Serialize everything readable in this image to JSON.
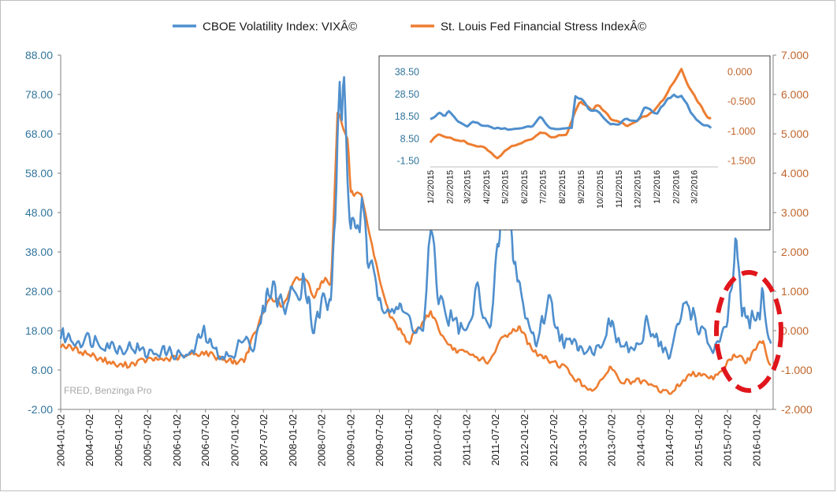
{
  "chart_data": [
    {
      "type": "line",
      "series": [
        {
          "name": "CBOE Volatility Index: VIXÂ©",
          "axis": "left",
          "color": "#4f8fcd",
          "anchors": [
            [
              "2004-01-02",
              17
            ],
            [
              "2004-04-01",
              15.5
            ],
            [
              "2004-07-01",
              16
            ],
            [
              "2004-10-01",
              15
            ],
            [
              "2005-01-03",
              13.5
            ],
            [
              "2005-04-01",
              14
            ],
            [
              "2005-07-01",
              12
            ],
            [
              "2005-10-03",
              13
            ],
            [
              "2006-01-03",
              12
            ],
            [
              "2006-04-03",
              11.5
            ],
            [
              "2006-06-15",
              18
            ],
            [
              "2006-09-01",
              12.5
            ],
            [
              "2007-01-02",
              11
            ],
            [
              "2007-02-27",
              18
            ],
            [
              "2007-05-01",
              13
            ],
            [
              "2007-08-16",
              30
            ],
            [
              "2007-11-01",
              24
            ],
            [
              "2008-01-22",
              28
            ],
            [
              "2008-03-17",
              32
            ],
            [
              "2008-05-15",
              18
            ],
            [
              "2008-07-15",
              26
            ],
            [
              "2008-09-01",
              24
            ],
            [
              "2008-10-24",
              79
            ],
            [
              "2008-11-20",
              75
            ],
            [
              "2009-01-02",
              44
            ],
            [
              "2009-03-09",
              48
            ],
            [
              "2009-05-01",
              33
            ],
            [
              "2009-07-01",
              27
            ],
            [
              "2009-09-01",
              25
            ],
            [
              "2010-01-04",
              21
            ],
            [
              "2010-04-01",
              17
            ],
            [
              "2010-05-20",
              43
            ],
            [
              "2010-07-01",
              28
            ],
            [
              "2010-09-01",
              22
            ],
            [
              "2011-01-03",
              17
            ],
            [
              "2011-03-16",
              29
            ],
            [
              "2011-06-01",
              17
            ],
            [
              "2011-08-08",
              48
            ],
            [
              "2011-10-03",
              43
            ],
            [
              "2012-01-03",
              22
            ],
            [
              "2012-03-15",
              15
            ],
            [
              "2012-06-01",
              26
            ],
            [
              "2012-09-01",
              15
            ],
            [
              "2013-01-02",
              14
            ],
            [
              "2013-04-01",
              13
            ],
            [
              "2013-06-20",
              20
            ],
            [
              "2013-09-01",
              14
            ],
            [
              "2014-01-02",
              13
            ],
            [
              "2014-02-03",
              21
            ],
            [
              "2014-07-01",
              11
            ],
            [
              "2014-10-15",
              26
            ],
            [
              "2015-01-02",
              19
            ],
            [
              "2015-04-01",
              13
            ],
            [
              "2015-06-29",
              18
            ],
            [
              "2015-08-24",
              40
            ],
            [
              "2015-10-01",
              22
            ],
            [
              "2016-01-04",
              20
            ],
            [
              "2016-02-11",
              28
            ],
            [
              "2016-03-15",
              16
            ],
            [
              "2016-04-01",
              14
            ]
          ]
        },
        {
          "name": "St. Louis Fed Financial Stress IndexÂ©",
          "axis": "right",
          "color": "#ed7d31",
          "anchors": [
            [
              "2004-01-02",
              -0.35
            ],
            [
              "2004-07-01",
              -0.6
            ],
            [
              "2005-01-03",
              -0.9
            ],
            [
              "2005-07-01",
              -0.75
            ],
            [
              "2006-01-03",
              -0.7
            ],
            [
              "2006-06-15",
              -0.55
            ],
            [
              "2007-01-02",
              -0.8
            ],
            [
              "2007-03-01",
              -0.75
            ],
            [
              "2007-08-16",
              0.9
            ],
            [
              "2007-11-01",
              0.6
            ],
            [
              "2008-01-22",
              1.3
            ],
            [
              "2008-03-17",
              1.35
            ],
            [
              "2008-05-15",
              0.9
            ],
            [
              "2008-07-15",
              1.3
            ],
            [
              "2008-09-01",
              1.2
            ],
            [
              "2008-10-10",
              5.6
            ],
            [
              "2008-12-15",
              4.8
            ],
            [
              "2009-01-02",
              3.5
            ],
            [
              "2009-03-09",
              3.4
            ],
            [
              "2009-06-01",
              1.8
            ],
            [
              "2009-09-01",
              0.4
            ],
            [
              "2010-01-04",
              -0.3
            ],
            [
              "2010-05-20",
              0.5
            ],
            [
              "2010-09-01",
              -0.4
            ],
            [
              "2011-01-03",
              -0.6
            ],
            [
              "2011-06-01",
              -0.8
            ],
            [
              "2011-08-08",
              -0.2
            ],
            [
              "2011-11-25",
              0.1
            ],
            [
              "2012-03-15",
              -0.6
            ],
            [
              "2012-09-01",
              -0.9
            ],
            [
              "2013-01-02",
              -1.4
            ],
            [
              "2013-04-01",
              -1.5
            ],
            [
              "2013-06-20",
              -0.9
            ],
            [
              "2013-09-01",
              -1.3
            ],
            [
              "2014-01-02",
              -1.3
            ],
            [
              "2014-07-01",
              -1.6
            ],
            [
              "2014-10-15",
              -1.2
            ],
            [
              "2015-01-02",
              -1.05
            ],
            [
              "2015-04-01",
              -1.2
            ],
            [
              "2015-08-24",
              -0.6
            ],
            [
              "2015-11-01",
              -0.8
            ],
            [
              "2016-02-11",
              -0.2
            ],
            [
              "2016-03-15",
              -0.75
            ],
            [
              "2016-04-01",
              -0.85
            ]
          ]
        }
      ],
      "x_ticks": [
        "2004-01-02",
        "2004-07-02",
        "2005-01-02",
        "2005-07-02",
        "2006-01-02",
        "2006-07-02",
        "2007-01-02",
        "2007-07-02",
        "2008-01-02",
        "2008-07-02",
        "2009-01-02",
        "2009-07-02",
        "2010-01-02",
        "2010-07-02",
        "2011-01-02",
        "2011-07-02",
        "2012-01-02",
        "2012-07-02",
        "2013-01-02",
        "2013-07-02",
        "2014-01-02",
        "2014-07-02",
        "2015-01-02",
        "2015-07-02",
        "2016-01-02"
      ],
      "y_left_ticks": [
        "88.00",
        "78.00",
        "68.00",
        "58.00",
        "48.00",
        "38.00",
        "28.00",
        "18.00",
        "8.00",
        "-2.00"
      ],
      "y_right_ticks": [
        "7.000",
        "6.000",
        "5.000",
        "4.000",
        "3.000",
        "2.000",
        "1.000",
        "0.000",
        "-1.000",
        "-2.000"
      ],
      "ylim_left": [
        -2,
        88
      ],
      "ylim_right": [
        -2,
        7
      ],
      "xlim": [
        "2004-01-02",
        "2016-04-15"
      ],
      "annotation": "FRED, Benzinga Pro",
      "highlight": "red dashed ellipse around 2015-07 to 2016-03"
    },
    {
      "type": "line",
      "inset": true,
      "series": [
        {
          "name": "CBOE Volatility Index: VIXÂ©",
          "axis": "left",
          "color": "#4f8fcd",
          "anchors": [
            [
              "2015-01-02",
              17
            ],
            [
              "2015-01-15",
              20
            ],
            [
              "2015-01-25",
              18
            ],
            [
              "2015-02-02",
              21
            ],
            [
              "2015-02-15",
              16
            ],
            [
              "2015-03-02",
              14
            ],
            [
              "2015-03-12",
              16
            ],
            [
              "2015-04-01",
              14
            ],
            [
              "2015-04-15",
              13
            ],
            [
              "2015-05-01",
              13
            ],
            [
              "2015-05-15",
              12.5
            ],
            [
              "2015-06-01",
              13
            ],
            [
              "2015-06-15",
              14
            ],
            [
              "2015-06-29",
              18
            ],
            [
              "2015-07-15",
              13
            ],
            [
              "2015-08-01",
              12.5
            ],
            [
              "2015-08-18",
              13
            ],
            [
              "2015-08-24",
              28
            ],
            [
              "2015-09-01",
              27
            ],
            [
              "2015-09-15",
              22
            ],
            [
              "2015-10-01",
              20
            ],
            [
              "2015-10-20",
              15
            ],
            [
              "2015-11-01",
              15
            ],
            [
              "2015-11-15",
              17
            ],
            [
              "2015-12-01",
              16
            ],
            [
              "2015-12-14",
              22
            ],
            [
              "2016-01-04",
              20
            ],
            [
              "2016-01-20",
              27
            ],
            [
              "2016-02-11",
              28
            ],
            [
              "2016-02-25",
              21
            ],
            [
              "2016-03-05",
              17
            ],
            [
              "2016-03-15",
              15
            ],
            [
              "2016-03-25",
              14
            ],
            [
              "2016-04-01",
              13
            ]
          ]
        },
        {
          "name": "St. Louis Fed Financial Stress IndexÂ©",
          "axis": "right",
          "color": "#ed7d31",
          "anchors": [
            [
              "2015-01-02",
              -1.2
            ],
            [
              "2015-01-15",
              -1.05
            ],
            [
              "2015-02-01",
              -1.1
            ],
            [
              "2015-03-01",
              -1.2
            ],
            [
              "2015-03-15",
              -1.25
            ],
            [
              "2015-04-01",
              -1.3
            ],
            [
              "2015-04-20",
              -1.45
            ],
            [
              "2015-05-15",
              -1.25
            ],
            [
              "2015-06-15",
              -1.15
            ],
            [
              "2015-06-29",
              -1.0
            ],
            [
              "2015-07-15",
              -1.1
            ],
            [
              "2015-08-10",
              -1.05
            ],
            [
              "2015-08-24",
              -0.65
            ],
            [
              "2015-09-01",
              -0.5
            ],
            [
              "2015-09-20",
              -0.65
            ],
            [
              "2015-10-01",
              -0.55
            ],
            [
              "2015-10-20",
              -0.8
            ],
            [
              "2015-11-15",
              -0.9
            ],
            [
              "2015-12-14",
              -0.75
            ],
            [
              "2016-01-04",
              -0.6
            ],
            [
              "2016-01-20",
              -0.35
            ],
            [
              "2016-02-11",
              0.05
            ],
            [
              "2016-02-25",
              -0.3
            ],
            [
              "2016-03-15",
              -0.6
            ],
            [
              "2016-03-25",
              -0.8
            ],
            [
              "2016-04-01",
              -0.75
            ]
          ]
        }
      ],
      "x_ticks": [
        "1/2/2015",
        "2/2/2015",
        "3/2/2015",
        "4/2/2015",
        "5/2/2015",
        "6/2/2015",
        "7/2/2015",
        "8/2/2015",
        "9/2/2015",
        "10/2/2015",
        "11/2/2015",
        "12/2/2015",
        "1/2/2016",
        "2/2/2016",
        "3/2/2016"
      ],
      "y_left_ticks": [
        "38.50",
        "28.50",
        "18.50",
        "8.50",
        "-1.50"
      ],
      "y_right_ticks": [
        "0.000",
        "-0.500",
        "-1.000",
        "-1.500"
      ],
      "ylim_left": [
        -1.5,
        38.5
      ],
      "ylim_right": [
        -1.5,
        0
      ],
      "xlim": [
        "2015-01-02",
        "2016-04-10"
      ]
    }
  ]
}
